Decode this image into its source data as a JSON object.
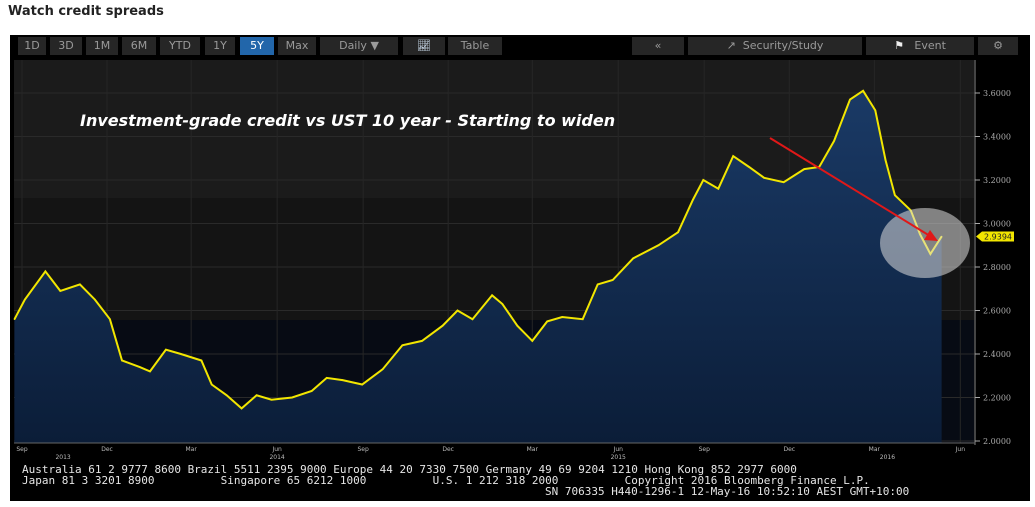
{
  "page_title": "Watch credit spreads",
  "toolbar": {
    "ranges": [
      "1D",
      "3D",
      "1M",
      "6M",
      "YTD",
      "1Y",
      "5Y",
      "Max"
    ],
    "active_range": "5Y",
    "frequency": "Daily",
    "chart_icon": "line-chart-icon",
    "table_label": "Table",
    "back_label": "«",
    "security_study_label": "Security/Study",
    "event_label": "Event",
    "settings_icon": "gear-icon"
  },
  "footer": {
    "line1": "Australia 61 2 9777 8600 Brazil 5511 2395 9000 Europe 44 20 7330 7500 Germany 49 69 9204 1210 Hong Kong 852 2977 6000",
    "line2": "Japan 81 3 3201 8900          Singapore 65 6212 1000          U.S. 1 212 318 2000          Copyright 2016 Bloomberg Finance L.P.",
    "line3": "SN 706335 H440-1296-1 12-May-16 10:52:10 AEST GMT+10:00"
  },
  "colors": {
    "line": "#f2e600",
    "area_top": "#1a3a66",
    "area_bottom": "#0b1d38",
    "arrow": "#e01818",
    "last_label": "#f2e600"
  },
  "chart_data": {
    "type": "area",
    "title": "",
    "annotation": "Investment-grade credit vs UST 10 year - Starting to widen",
    "last_value_label": "2.9394",
    "ylim": [
      2.0,
      3.75
    ],
    "y_ticks": [
      "3.6000",
      "3.4000",
      "3.2000",
      "3.0000",
      "2.8000",
      "2.6000",
      "2.4000",
      "2.2000",
      "2.0000"
    ],
    "y_tick_values": [
      3.6,
      3.4,
      3.2,
      3.0,
      2.8,
      2.6,
      2.4,
      2.2,
      2.0
    ],
    "x_ticks": [
      {
        "label": "Sep",
        "date": "2013-09-01"
      },
      {
        "label": "Dec",
        "date": "2013-12-01"
      },
      {
        "label": "Mar",
        "date": "2014-03-01"
      },
      {
        "label": "Jun",
        "date": "2014-06-01"
      },
      {
        "label": "Sep",
        "date": "2014-09-01"
      },
      {
        "label": "Dec",
        "date": "2014-12-01"
      },
      {
        "label": "Mar",
        "date": "2015-03-01"
      },
      {
        "label": "Jun",
        "date": "2015-06-01"
      },
      {
        "label": "Sep",
        "date": "2015-09-01"
      },
      {
        "label": "Dec",
        "date": "2015-12-01"
      },
      {
        "label": "Mar",
        "date": "2016-03-01"
      },
      {
        "label": "Jun",
        "date": "2016-06-01"
      }
    ],
    "x_years": [
      {
        "label": "2013",
        "date": "2013-10-15"
      },
      {
        "label": "2014",
        "date": "2014-06-01"
      },
      {
        "label": "2015",
        "date": "2015-06-01"
      },
      {
        "label": "2016",
        "date": "2016-03-15"
      }
    ],
    "points": [
      [
        "2013-08-24",
        2.56
      ],
      [
        "2013-09-04",
        2.65
      ],
      [
        "2013-09-26",
        2.78
      ],
      [
        "2013-10-12",
        2.69
      ],
      [
        "2013-11-02",
        2.72
      ],
      [
        "2013-11-18",
        2.65
      ],
      [
        "2013-12-04",
        2.56
      ],
      [
        "2013-12-17",
        2.37
      ],
      [
        "2014-01-05",
        2.34
      ],
      [
        "2014-01-16",
        2.32
      ],
      [
        "2014-02-02",
        2.42
      ],
      [
        "2014-02-18",
        2.4
      ],
      [
        "2014-03-12",
        2.37
      ],
      [
        "2014-03-23",
        2.26
      ],
      [
        "2014-04-08",
        2.21
      ],
      [
        "2014-04-24",
        2.15
      ],
      [
        "2014-05-10",
        2.21
      ],
      [
        "2014-05-26",
        2.19
      ],
      [
        "2014-06-17",
        2.2
      ],
      [
        "2014-07-08",
        2.23
      ],
      [
        "2014-07-24",
        2.29
      ],
      [
        "2014-08-10",
        2.28
      ],
      [
        "2014-08-31",
        2.26
      ],
      [
        "2014-09-22",
        2.33
      ],
      [
        "2014-10-13",
        2.44
      ],
      [
        "2014-11-03",
        2.46
      ],
      [
        "2014-11-25",
        2.53
      ],
      [
        "2014-12-11",
        2.6
      ],
      [
        "2014-12-27",
        2.56
      ],
      [
        "2015-01-17",
        2.67
      ],
      [
        "2015-01-28",
        2.63
      ],
      [
        "2015-02-13",
        2.53
      ],
      [
        "2015-03-01",
        2.46
      ],
      [
        "2015-03-17",
        2.55
      ],
      [
        "2015-04-02",
        2.57
      ],
      [
        "2015-04-24",
        2.56
      ],
      [
        "2015-05-10",
        2.72
      ],
      [
        "2015-05-26",
        2.74
      ],
      [
        "2015-06-17",
        2.84
      ],
      [
        "2015-07-14",
        2.9
      ],
      [
        "2015-08-04",
        2.96
      ],
      [
        "2015-08-20",
        3.11
      ],
      [
        "2015-08-31",
        3.2
      ],
      [
        "2015-09-16",
        3.16
      ],
      [
        "2015-10-02",
        3.31
      ],
      [
        "2015-10-19",
        3.26
      ],
      [
        "2015-11-04",
        3.21
      ],
      [
        "2015-11-25",
        3.19
      ],
      [
        "2015-12-17",
        3.25
      ],
      [
        "2016-01-02",
        3.26
      ],
      [
        "2016-01-18",
        3.38
      ],
      [
        "2016-02-04",
        3.57
      ],
      [
        "2016-02-18",
        3.61
      ],
      [
        "2016-03-02",
        3.52
      ],
      [
        "2016-03-13",
        3.29
      ],
      [
        "2016-03-23",
        3.13
      ],
      [
        "2016-04-09",
        3.06
      ],
      [
        "2016-04-19",
        2.95
      ],
      [
        "2016-04-30",
        2.86
      ],
      [
        "2016-05-12",
        2.94
      ]
    ]
  }
}
